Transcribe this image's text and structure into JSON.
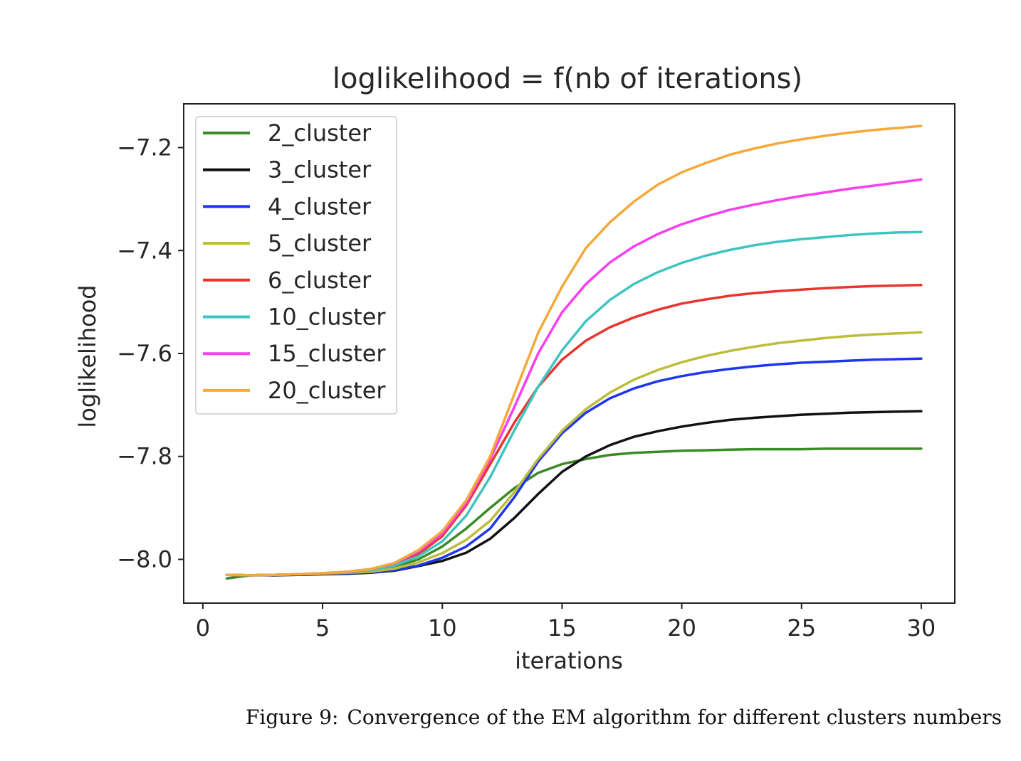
{
  "chart_data": {
    "type": "line",
    "title": "loglikelihood = f(nb of iterations)",
    "xlabel": "iterations",
    "ylabel": "loglikelihood",
    "xlim": [
      -0.8,
      31.4
    ],
    "ylim": [
      -8.085,
      -7.115
    ],
    "xticks": [
      0,
      5,
      10,
      15,
      20,
      25,
      30
    ],
    "xtick_labels": [
      "0",
      "5",
      "10",
      "15",
      "20",
      "25",
      "30"
    ],
    "yticks": [
      -8.0,
      -7.8,
      -7.6,
      -7.4,
      -7.2
    ],
    "ytick_labels": [
      "−8.0",
      "−7.8",
      "−7.6",
      "−7.4",
      "−7.2"
    ],
    "grid": false,
    "legend_position": "upper-left",
    "x": [
      1,
      2,
      3,
      4,
      5,
      6,
      7,
      8,
      9,
      10,
      11,
      12,
      13,
      14,
      15,
      16,
      17,
      18,
      19,
      20,
      21,
      22,
      23,
      24,
      25,
      26,
      27,
      28,
      29,
      30
    ],
    "series": [
      {
        "name": "2_cluster",
        "color": "#3a8a25",
        "values": [
          -8.037,
          -8.031,
          -8.03,
          -8.029,
          -8.028,
          -8.026,
          -8.023,
          -8.015,
          -8.0,
          -7.975,
          -7.94,
          -7.9,
          -7.862,
          -7.832,
          -7.815,
          -7.805,
          -7.797,
          -7.793,
          -7.791,
          -7.789,
          -7.788,
          -7.787,
          -7.786,
          -7.786,
          -7.786,
          -7.785,
          -7.785,
          -7.785,
          -7.785,
          -7.785
        ]
      },
      {
        "name": "3_cluster",
        "color": "#111111",
        "values": [
          -8.03,
          -8.031,
          -8.031,
          -8.03,
          -8.029,
          -8.028,
          -8.026,
          -8.022,
          -8.013,
          -8.003,
          -7.987,
          -7.96,
          -7.92,
          -7.873,
          -7.83,
          -7.8,
          -7.778,
          -7.762,
          -7.751,
          -7.742,
          -7.735,
          -7.729,
          -7.725,
          -7.722,
          -7.719,
          -7.717,
          -7.715,
          -7.714,
          -7.713,
          -7.712
        ]
      },
      {
        "name": "4_cluster",
        "color": "#1f35f0",
        "values": [
          -8.03,
          -8.031,
          -8.03,
          -8.029,
          -8.028,
          -8.027,
          -8.025,
          -8.021,
          -8.012,
          -7.997,
          -7.975,
          -7.94,
          -7.88,
          -7.81,
          -7.755,
          -7.715,
          -7.687,
          -7.668,
          -7.654,
          -7.644,
          -7.636,
          -7.63,
          -7.625,
          -7.621,
          -7.618,
          -7.616,
          -7.614,
          -7.612,
          -7.611,
          -7.61
        ]
      },
      {
        "name": "5_cluster",
        "color": "#bcbd3a",
        "values": [
          -8.03,
          -8.031,
          -8.03,
          -8.029,
          -8.028,
          -8.026,
          -8.024,
          -8.018,
          -8.006,
          -7.988,
          -7.962,
          -7.925,
          -7.87,
          -7.805,
          -7.75,
          -7.708,
          -7.676,
          -7.651,
          -7.632,
          -7.617,
          -7.605,
          -7.595,
          -7.587,
          -7.58,
          -7.575,
          -7.57,
          -7.566,
          -7.563,
          -7.561,
          -7.559
        ]
      },
      {
        "name": "6_cluster",
        "color": "#e8352e",
        "values": [
          -8.03,
          -8.031,
          -8.03,
          -8.029,
          -8.027,
          -8.025,
          -8.021,
          -8.012,
          -7.99,
          -7.955,
          -7.895,
          -7.815,
          -7.735,
          -7.665,
          -7.612,
          -7.575,
          -7.549,
          -7.53,
          -7.515,
          -7.503,
          -7.495,
          -7.488,
          -7.483,
          -7.479,
          -7.476,
          -7.473,
          -7.471,
          -7.469,
          -7.468,
          -7.467
        ]
      },
      {
        "name": "10_cluster",
        "color": "#3fc4c0",
        "values": [
          -8.03,
          -8.031,
          -8.03,
          -8.029,
          -8.027,
          -8.025,
          -8.021,
          -8.012,
          -7.994,
          -7.965,
          -7.915,
          -7.84,
          -7.75,
          -7.665,
          -7.594,
          -7.537,
          -7.496,
          -7.465,
          -7.442,
          -7.424,
          -7.41,
          -7.399,
          -7.39,
          -7.383,
          -7.378,
          -7.374,
          -7.37,
          -7.367,
          -7.365,
          -7.364
        ]
      },
      {
        "name": "15_cluster",
        "color": "#f83ff0",
        "values": [
          -8.03,
          -8.031,
          -8.03,
          -8.029,
          -8.027,
          -8.024,
          -8.019,
          -8.008,
          -7.985,
          -7.95,
          -7.89,
          -7.805,
          -7.705,
          -7.6,
          -7.52,
          -7.465,
          -7.423,
          -7.392,
          -7.368,
          -7.349,
          -7.334,
          -7.321,
          -7.311,
          -7.302,
          -7.294,
          -7.287,
          -7.28,
          -7.274,
          -7.268,
          -7.262
        ]
      },
      {
        "name": "20_cluster",
        "color": "#f5a93a",
        "values": [
          -8.03,
          -8.031,
          -8.03,
          -8.029,
          -8.027,
          -8.024,
          -8.019,
          -8.007,
          -7.982,
          -7.945,
          -7.885,
          -7.8,
          -7.68,
          -7.56,
          -7.47,
          -7.395,
          -7.345,
          -7.305,
          -7.272,
          -7.248,
          -7.23,
          -7.214,
          -7.202,
          -7.192,
          -7.184,
          -7.177,
          -7.171,
          -7.166,
          -7.162,
          -7.158
        ]
      }
    ]
  },
  "caption": {
    "label": "Figure 9:",
    "text": "Convergence of the EM algorithm for different clusters numbers"
  }
}
